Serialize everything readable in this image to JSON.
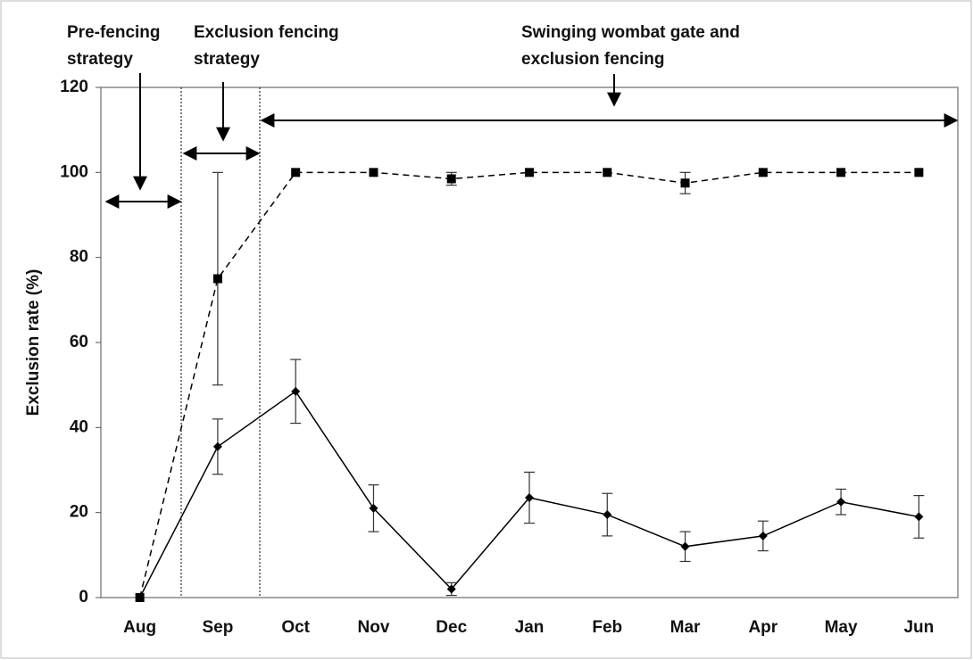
{
  "chart_data": {
    "type": "line",
    "ylabel": "Exclusion rate (%)",
    "categories": [
      "Aug",
      "Sep",
      "Oct",
      "Nov",
      "Dec",
      "Jan",
      "Feb",
      "Mar",
      "Apr",
      "May",
      "Jun"
    ],
    "series": [
      {
        "color": "#000000",
        "line_style": "dashed",
        "marker": "square",
        "values": [
          0,
          75,
          100,
          100,
          98.5,
          100,
          100,
          97.5,
          100,
          100,
          100
        ],
        "errors": [
          0,
          25,
          0,
          0,
          1.5,
          0,
          0,
          2.5,
          0,
          0,
          0
        ]
      },
      {
        "color": "#000000",
        "line_style": "solid",
        "marker": "diamond",
        "values": [
          0,
          35.5,
          48.5,
          21,
          2,
          23.5,
          19.5,
          12,
          14.5,
          22.5,
          19
        ],
        "errors": [
          0,
          6.5,
          7.5,
          5.5,
          1.5,
          6,
          5,
          3.5,
          3.5,
          3,
          5
        ]
      }
    ],
    "ylim": [
      0,
      120
    ],
    "yticks": [
      0,
      20,
      40,
      60,
      80,
      100,
      120
    ],
    "grid": false,
    "annotations": [
      {
        "lines": [
          "Pre-fencing",
          "strategy"
        ]
      },
      {
        "lines": [
          "Exclusion fencing",
          "strategy"
        ]
      },
      {
        "lines": [
          "Swinging wombat gate and",
          "exclusion fencing"
        ]
      }
    ]
  }
}
